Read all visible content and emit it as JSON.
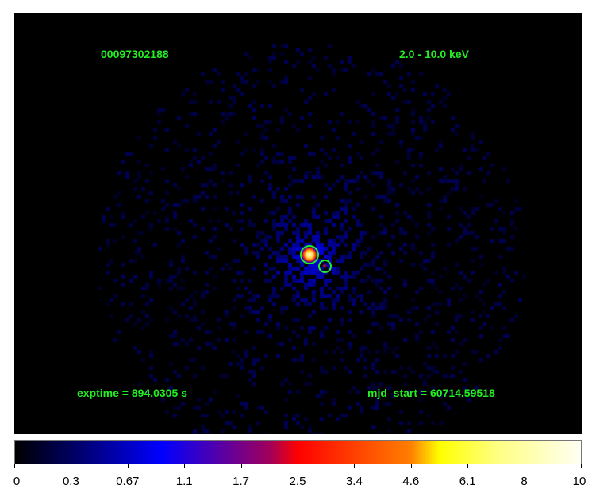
{
  "image": {
    "obs_id": "00097302188",
    "energy_band": "2.0 - 10.0 keV",
    "exptime": "exptime = 894.0305 s",
    "mjd_start": "mjd_start = 60714.59518",
    "label_color": "#22ee22",
    "colormap": "heat (black-blue-red-yellow-white)"
  },
  "colorbar": {
    "ticks": [
      "0",
      "0.3",
      "0.67",
      "1.1",
      "1.7",
      "2.5",
      "3.4",
      "4.6",
      "6.1",
      "8",
      "10"
    ]
  }
}
